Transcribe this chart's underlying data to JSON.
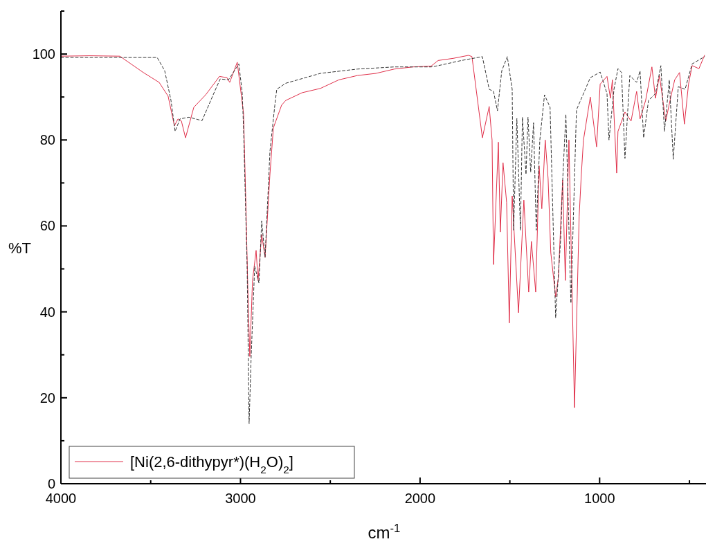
{
  "chart_data": {
    "type": "line",
    "xlabel": "cm$^{-1}$",
    "ylabel": "%T",
    "xlim": [
      4000,
      400
    ],
    "ylim": [
      0,
      110
    ],
    "xticks": [
      4000,
      {
        "value": 3500,
        "label": null
      },
      3000,
      {
        "value": 2500,
        "label": null
      },
      2000,
      {
        "value": 1500,
        "label": null
      },
      1000,
      {
        "value": 500,
        "label": null
      }
    ],
    "yticks": [
      0,
      {
        "value": 10,
        "label": null
      },
      20,
      {
        "value": 30,
        "label": null
      },
      40,
      {
        "value": 50,
        "label": null
      },
      60,
      {
        "value": 70,
        "label": null
      },
      80,
      {
        "value": 90,
        "label": null
      },
      100,
      {
        "value": 110,
        "label": null
      }
    ],
    "grid": false,
    "legend": "bottom left",
    "series": [
      {
        "name": "[Ni(2,6-dithypyr*)(H$_{2}$O)$_{2}$]",
        "color": "#e0304a",
        "line_style": "solid",
        "x": [
          4000,
          3838,
          3672,
          3541,
          3453,
          3403,
          3368,
          3348,
          3329,
          3306,
          3260,
          3194,
          3117,
          3075,
          3060,
          3018,
          2998,
          2983,
          2971,
          2959,
          2948,
          2933,
          2913,
          2902,
          2882,
          2863,
          2836,
          2817,
          2771,
          2748,
          2657,
          2555,
          2452,
          2349,
          2246,
          2144,
          2041,
          1938,
          1899,
          1815,
          1730,
          1711,
          1653,
          1615,
          1599,
          1591,
          1564,
          1553,
          1538,
          1518,
          1503,
          1487,
          1452,
          1422,
          1395,
          1380,
          1356,
          1337,
          1322,
          1303,
          1287,
          1272,
          1245,
          1230,
          1206,
          1191,
          1171,
          1140,
          1114,
          1102,
          1090,
          1052,
          1017,
          997,
          959,
          940,
          929,
          905,
          898,
          859,
          825,
          794,
          775,
          744,
          709,
          689,
          667,
          632,
          608,
          582,
          555,
          528,
          505,
          485,
          447,
          416
        ],
        "values": [
          99.5,
          99.6,
          99.5,
          95.7,
          93.4,
          90.2,
          83.3,
          84.9,
          84.4,
          80.5,
          87.6,
          90.5,
          94.8,
          94.5,
          93.4,
          98.1,
          91.3,
          86.2,
          66.7,
          45.1,
          29.6,
          47.3,
          54.3,
          47.3,
          58,
          52.7,
          72,
          82.8,
          88.1,
          89.2,
          91,
          92,
          94,
          95,
          95.5,
          96.5,
          97,
          97.2,
          98.5,
          99,
          99.7,
          99.4,
          80.5,
          87.8,
          80,
          51,
          79.5,
          58.6,
          74.7,
          65.5,
          37.4,
          67,
          39.8,
          66,
          44.6,
          56.4,
          44.6,
          74,
          64,
          80,
          71,
          53.8,
          43.5,
          47.8,
          70.7,
          47.3,
          80,
          17.7,
          62.3,
          72,
          80,
          90,
          78.4,
          93,
          94.8,
          89.7,
          94,
          72.3,
          82,
          86.5,
          84.4,
          91.3,
          84.9,
          89.2,
          97,
          89.7,
          95,
          84.4,
          89.2,
          94,
          95.7,
          83.7,
          93,
          97.3,
          96.6,
          99.7
        ]
      },
      {
        "color": "#333333",
        "line_style": "dashed",
        "x": [
          4000,
          3684,
          3464,
          3422,
          3387,
          3364,
          3337,
          3287,
          3214,
          3144,
          3113,
          3067,
          3009,
          2990,
          2983,
          2963,
          2952,
          2941,
          2921,
          2897,
          2882,
          2863,
          2836,
          2809,
          2798,
          2748,
          2555,
          2349,
          2144,
          1938,
          1899,
          1769,
          1653,
          1615,
          1591,
          1569,
          1545,
          1514,
          1487,
          1479,
          1461,
          1441,
          1430,
          1410,
          1399,
          1384,
          1368,
          1353,
          1333,
          1307,
          1276,
          1245,
          1217,
          1206,
          1188,
          1160,
          1129,
          1052,
          997,
          959,
          948,
          920,
          898,
          878,
          859,
          832,
          794,
          775,
          755,
          728,
          689,
          659,
          639,
          612,
          590,
          562,
          524,
          485,
          416
        ],
        "values": [
          99.2,
          99.2,
          99.2,
          96.1,
          89.2,
          82,
          84.9,
          85.3,
          84.5,
          91.3,
          94.2,
          94,
          97.7,
          90.8,
          82.8,
          50.6,
          14,
          29,
          50.6,
          46.7,
          61.2,
          52.7,
          77.3,
          88,
          91.8,
          93.2,
          95.5,
          96.5,
          97,
          97,
          97.3,
          98.5,
          99.4,
          91.8,
          91.3,
          86.8,
          96.1,
          99.4,
          91.8,
          59,
          85,
          59,
          85.3,
          72,
          85.3,
          72.5,
          84,
          59,
          80,
          90.5,
          87.6,
          38.6,
          57,
          70.4,
          86,
          42,
          87,
          94.5,
          95.8,
          90.8,
          80,
          91.8,
          96.6,
          95.7,
          75.7,
          95,
          93.4,
          96.1,
          80.5,
          89.2,
          90.8,
          97.3,
          82,
          94,
          75.5,
          92.4,
          91.8,
          97.7,
          99.4
        ]
      }
    ]
  }
}
